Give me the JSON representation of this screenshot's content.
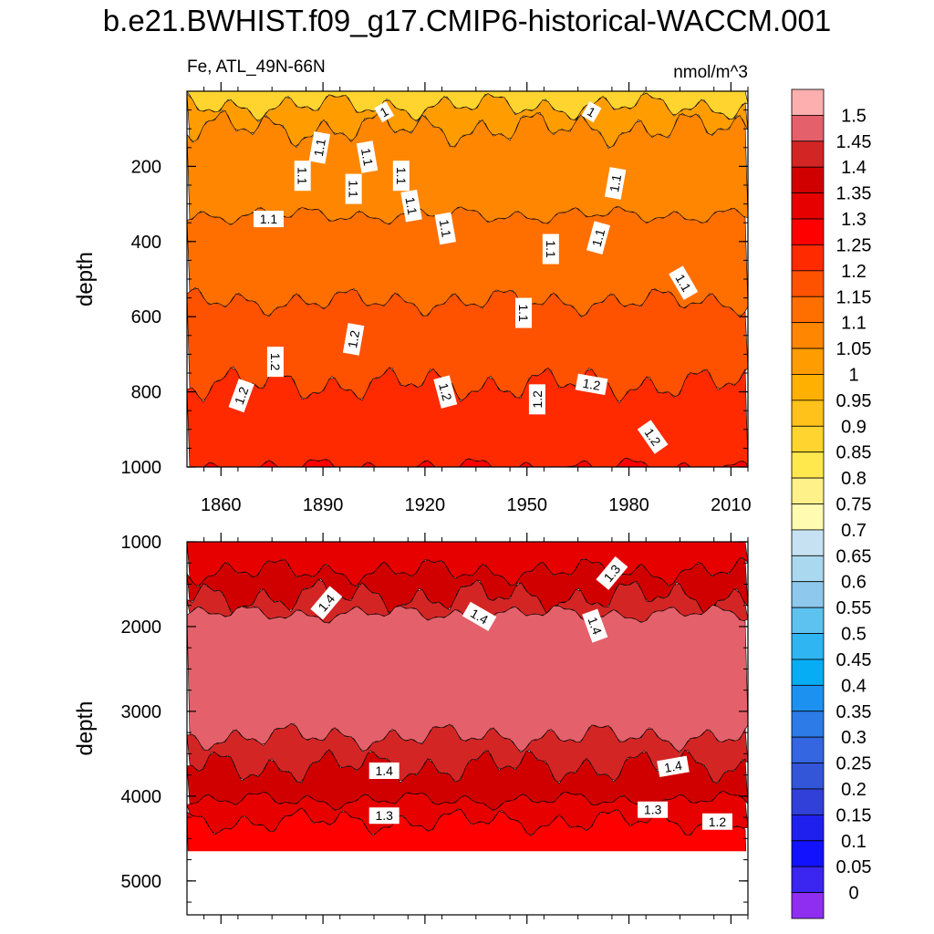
{
  "chart_data": {
    "type": "heatmap",
    "title": "b.e21.BWHIST.f09_g17.CMIP6-historical-WACCM.001",
    "variable": "Fe, ATL_49N-66N",
    "units": "nmol/m^3",
    "xaxis": {
      "range": [
        1850,
        2015
      ],
      "tick_labels": [
        "1860",
        "1890",
        "1920",
        "1950",
        "1980",
        "2010"
      ],
      "tick_values": [
        1860,
        1890,
        1920,
        1950,
        1980,
        2010
      ]
    },
    "panels": [
      {
        "name": "upper",
        "ylabel": "depth",
        "ylim": [
          0,
          1000
        ],
        "reversed": true,
        "tick_labels": [
          "200",
          "400",
          "600",
          "800",
          "1000"
        ],
        "tick_values": [
          200,
          400,
          600,
          800,
          1000
        ],
        "layers": [
          {
            "depth": 0,
            "value": 0.85
          },
          {
            "depth": 40,
            "value": 1.0
          },
          {
            "depth": 100,
            "value": 1.05
          },
          {
            "depth": 330,
            "value": 1.1
          },
          {
            "depth": 560,
            "value": 1.15
          },
          {
            "depth": 780,
            "value": 1.2
          },
          {
            "depth": 1000,
            "value": 1.25
          }
        ],
        "contour_labels": [
          {
            "text": "1",
            "year": 1908,
            "depth": 55,
            "angle": -30
          },
          {
            "text": "1",
            "year": 1969,
            "depth": 55,
            "angle": 30
          },
          {
            "text": "1.1",
            "year": 1889,
            "depth": 150,
            "angle": -80
          },
          {
            "text": "1.1",
            "year": 1903,
            "depth": 175,
            "angle": 80
          },
          {
            "text": "1.1",
            "year": 1884,
            "depth": 225,
            "angle": 90
          },
          {
            "text": "1.1",
            "year": 1899,
            "depth": 260,
            "angle": 90
          },
          {
            "text": "1.1",
            "year": 1913,
            "depth": 225,
            "angle": 90
          },
          {
            "text": "1.1",
            "year": 1916,
            "depth": 305,
            "angle": 80
          },
          {
            "text": "1.1",
            "year": 1874,
            "depth": 340,
            "angle": 0
          },
          {
            "text": "1.1",
            "year": 1926,
            "depth": 365,
            "angle": 80
          },
          {
            "text": "1.1",
            "year": 1957,
            "depth": 420,
            "angle": 90
          },
          {
            "text": "1.1",
            "year": 1976,
            "depth": 245,
            "angle": -80
          },
          {
            "text": "1.1",
            "year": 1971,
            "depth": 390,
            "angle": -75
          },
          {
            "text": "1.1",
            "year": 1996,
            "depth": 510,
            "angle": 60
          },
          {
            "text": "1.1",
            "year": 1949,
            "depth": 590,
            "angle": 90
          },
          {
            "text": "1.2",
            "year": 1899,
            "depth": 660,
            "angle": -80
          },
          {
            "text": "1.2",
            "year": 1876,
            "depth": 720,
            "angle": 90
          },
          {
            "text": "1.2",
            "year": 1866,
            "depth": 810,
            "angle": -70
          },
          {
            "text": "1.2",
            "year": 1926,
            "depth": 800,
            "angle": 75
          },
          {
            "text": "1.2",
            "year": 1953,
            "depth": 820,
            "angle": -90
          },
          {
            "text": "1.2",
            "year": 1969,
            "depth": 780,
            "angle": 10
          },
          {
            "text": "1.2",
            "year": 1987,
            "depth": 920,
            "angle": 55
          }
        ]
      },
      {
        "name": "lower",
        "ylabel": "depth",
        "ylim": [
          1000,
          5400
        ],
        "reversed": true,
        "tick_labels": [
          "1000",
          "2000",
          "3000",
          "4000",
          "5000"
        ],
        "tick_values": [
          1000,
          2000,
          3000,
          4000,
          5000
        ],
        "data_bottom": 4650,
        "layers": [
          {
            "depth": 1000,
            "value": 1.3
          },
          {
            "depth": 1350,
            "value": 1.35
          },
          {
            "depth": 1650,
            "value": 1.4
          },
          {
            "depth": 1850,
            "value": 1.45
          },
          {
            "depth": 3300,
            "value": 1.4
          },
          {
            "depth": 3650,
            "value": 1.35
          },
          {
            "depth": 4050,
            "value": 1.3
          },
          {
            "depth": 4300,
            "value": 1.25
          }
        ],
        "contour_labels": [
          {
            "text": "1.3",
            "year": 1975,
            "depth": 1370,
            "angle": -50
          },
          {
            "text": "1.4",
            "year": 1891,
            "depth": 1720,
            "angle": -50
          },
          {
            "text": "1.4",
            "year": 1936,
            "depth": 1880,
            "angle": 30
          },
          {
            "text": "1.4",
            "year": 1970,
            "depth": 1990,
            "angle": 70
          },
          {
            "text": "1.4",
            "year": 1908,
            "depth": 3700,
            "angle": 0
          },
          {
            "text": "1.4",
            "year": 1993,
            "depth": 3650,
            "angle": -10
          },
          {
            "text": "1.3",
            "year": 1908,
            "depth": 4230,
            "angle": 0
          },
          {
            "text": "1.3",
            "year": 1987,
            "depth": 4160,
            "angle": 0
          },
          {
            "text": "1.2",
            "year": 2006,
            "depth": 4300,
            "angle": 0
          }
        ]
      }
    ],
    "colorbar": {
      "levels": [
        "1.5",
        "1.45",
        "1.4",
        "1.35",
        "1.3",
        "1.25",
        "1.2",
        "1.15",
        "1.1",
        "1.05",
        "1",
        "0.95",
        "0.9",
        "0.85",
        "0.8",
        "0.75",
        "0.7",
        "0.65",
        "0.6",
        "0.55",
        "0.5",
        "0.45",
        "0.4",
        "0.35",
        "0.3",
        "0.25",
        "0.2",
        "0.15",
        "0.1",
        "0.05",
        "0"
      ],
      "colors": [
        "#fdafaf",
        "#e4606a",
        "#d42525",
        "#d00000",
        "#e60000",
        "#ff0000",
        "#ff2a00",
        "#ff5200",
        "#ff6f00",
        "#ff8600",
        "#ff9d00",
        "#ffb000",
        "#ffc21a",
        "#ffd42e",
        "#ffe84d",
        "#fff18a",
        "#fffbb0",
        "#c6e2f2",
        "#a9d8ef",
        "#8ec8ec",
        "#5ec2f0",
        "#2eb5f2",
        "#06adf4",
        "#1d91f0",
        "#2c7be6",
        "#3366e0",
        "#3355d8",
        "#3040d8",
        "#1f1fee",
        "#1212ff",
        "#3b25f0",
        "#8f2ef0"
      ]
    }
  }
}
